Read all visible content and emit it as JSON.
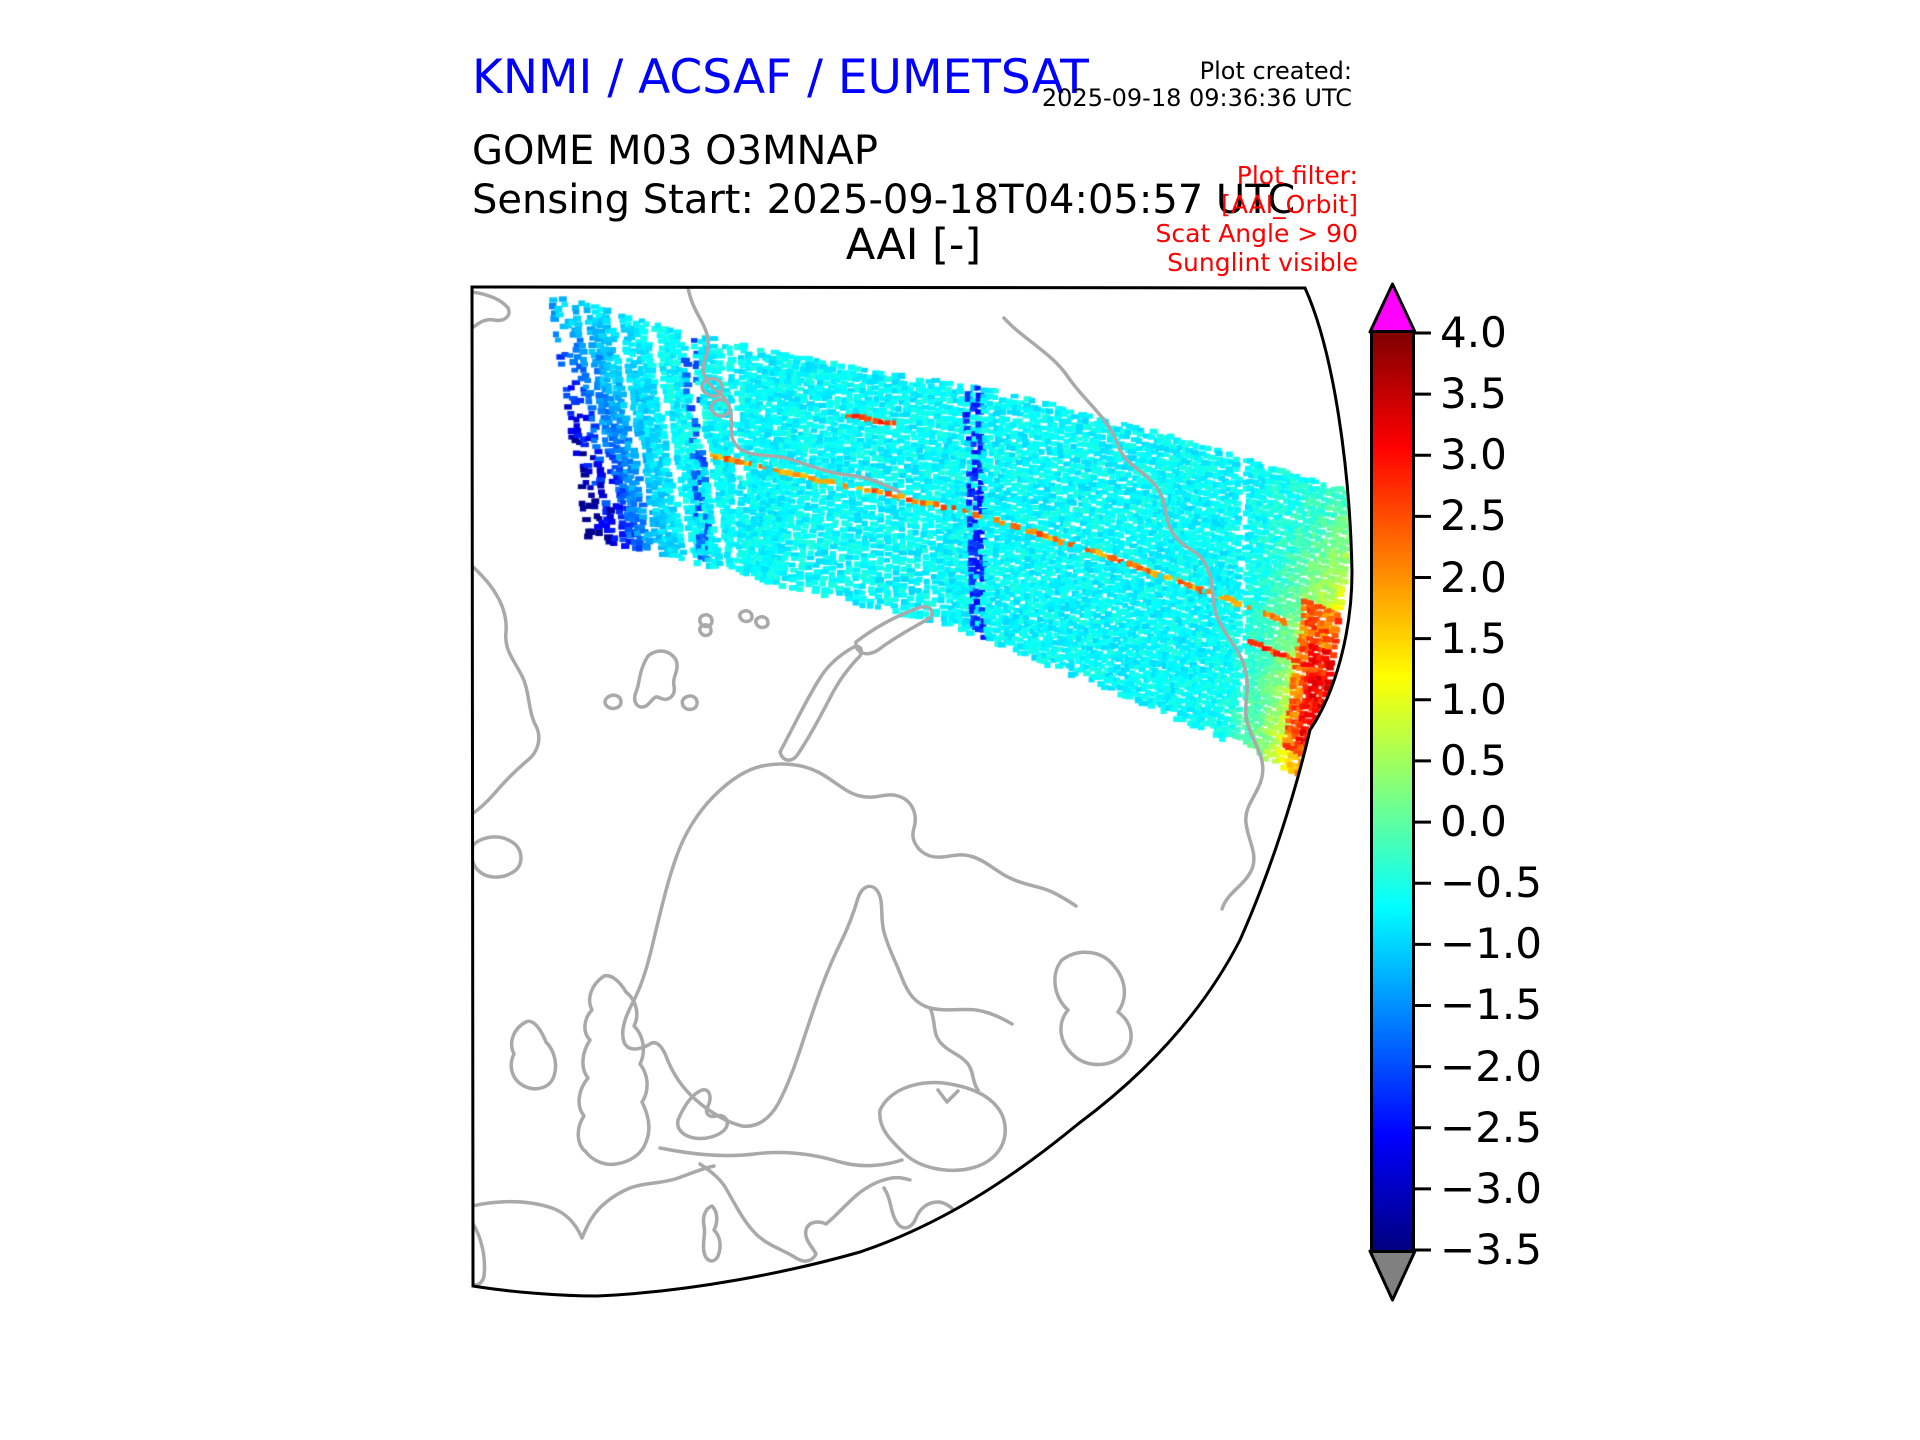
{
  "header": {
    "org_title": "KNMI / ACSAF / EUMETSAT",
    "created_label": "Plot created:",
    "created_timestamp": "2025-09-18 09:36:36 UTC",
    "product_line": "GOME M03 O3MNAP",
    "sensing_line": "Sensing Start: 2025-09-18T04:05:57 UTC",
    "plot_title": "AAI [-]"
  },
  "filter_note": {
    "lines": [
      "Plot filter:",
      "[AAI_Orbit]",
      "Scat Angle > 90",
      "Sunglint visible"
    ]
  },
  "colorbar": {
    "title": "AAI [-]",
    "colormap": "jet",
    "vmin": -3.5,
    "vmax": 4.0,
    "tick_step": 0.5,
    "ticks": [
      "4.0",
      "3.5",
      "3.0",
      "2.5",
      "2.0",
      "1.5",
      "1.0",
      "0.5",
      "0.0",
      "−0.5",
      "−1.0",
      "−1.5",
      "−2.0",
      "−2.5",
      "−3.0",
      "−3.5"
    ],
    "over_color": "#ff00ff",
    "under_color": "#808080"
  },
  "colors": {
    "org_title_blue": "#0000ff",
    "filter_red": "#ff0000",
    "coastline_gray": "#a9a9a9",
    "frame_black": "#000000",
    "background": "#ffffff"
  },
  "chart_data": {
    "type": "heatmap",
    "title": "AAI [-]",
    "colormap": "jet",
    "value_range": [
      -3.5,
      4.0
    ],
    "colorbar_ticks": [
      4.0,
      3.5,
      3.0,
      2.5,
      2.0,
      1.5,
      1.0,
      0.5,
      0.0,
      -0.5,
      -1.0,
      -1.5,
      -2.0,
      -2.5,
      -3.0,
      -3.5
    ],
    "legend_position": "right",
    "map_view": "north polar view of Europe and the Arctic, gray coastlines inside a quarter-disc boundary",
    "swath_description": "single diagonal satellite orbit swath crossing the upper part of the map from west to east, ending at the curved disc edge",
    "swath_regions": [
      {
        "area": "western end",
        "aai_values": [
          -3.2,
          -0.5
        ],
        "appearance": "blue to dark-blue speckles with slanted white missing-data stripes"
      },
      {
        "area": "central body",
        "aai_values": [
          -1.0,
          1.3
        ],
        "appearance": "green-cyan field with yellow patches, sparse blue speckles and thin red scanline streaks"
      },
      {
        "area": "eastern limb",
        "aai_values": [
          1.5,
          3.5
        ],
        "appearance": "orange to red sunglint region hugging the curved edge"
      }
    ]
  }
}
